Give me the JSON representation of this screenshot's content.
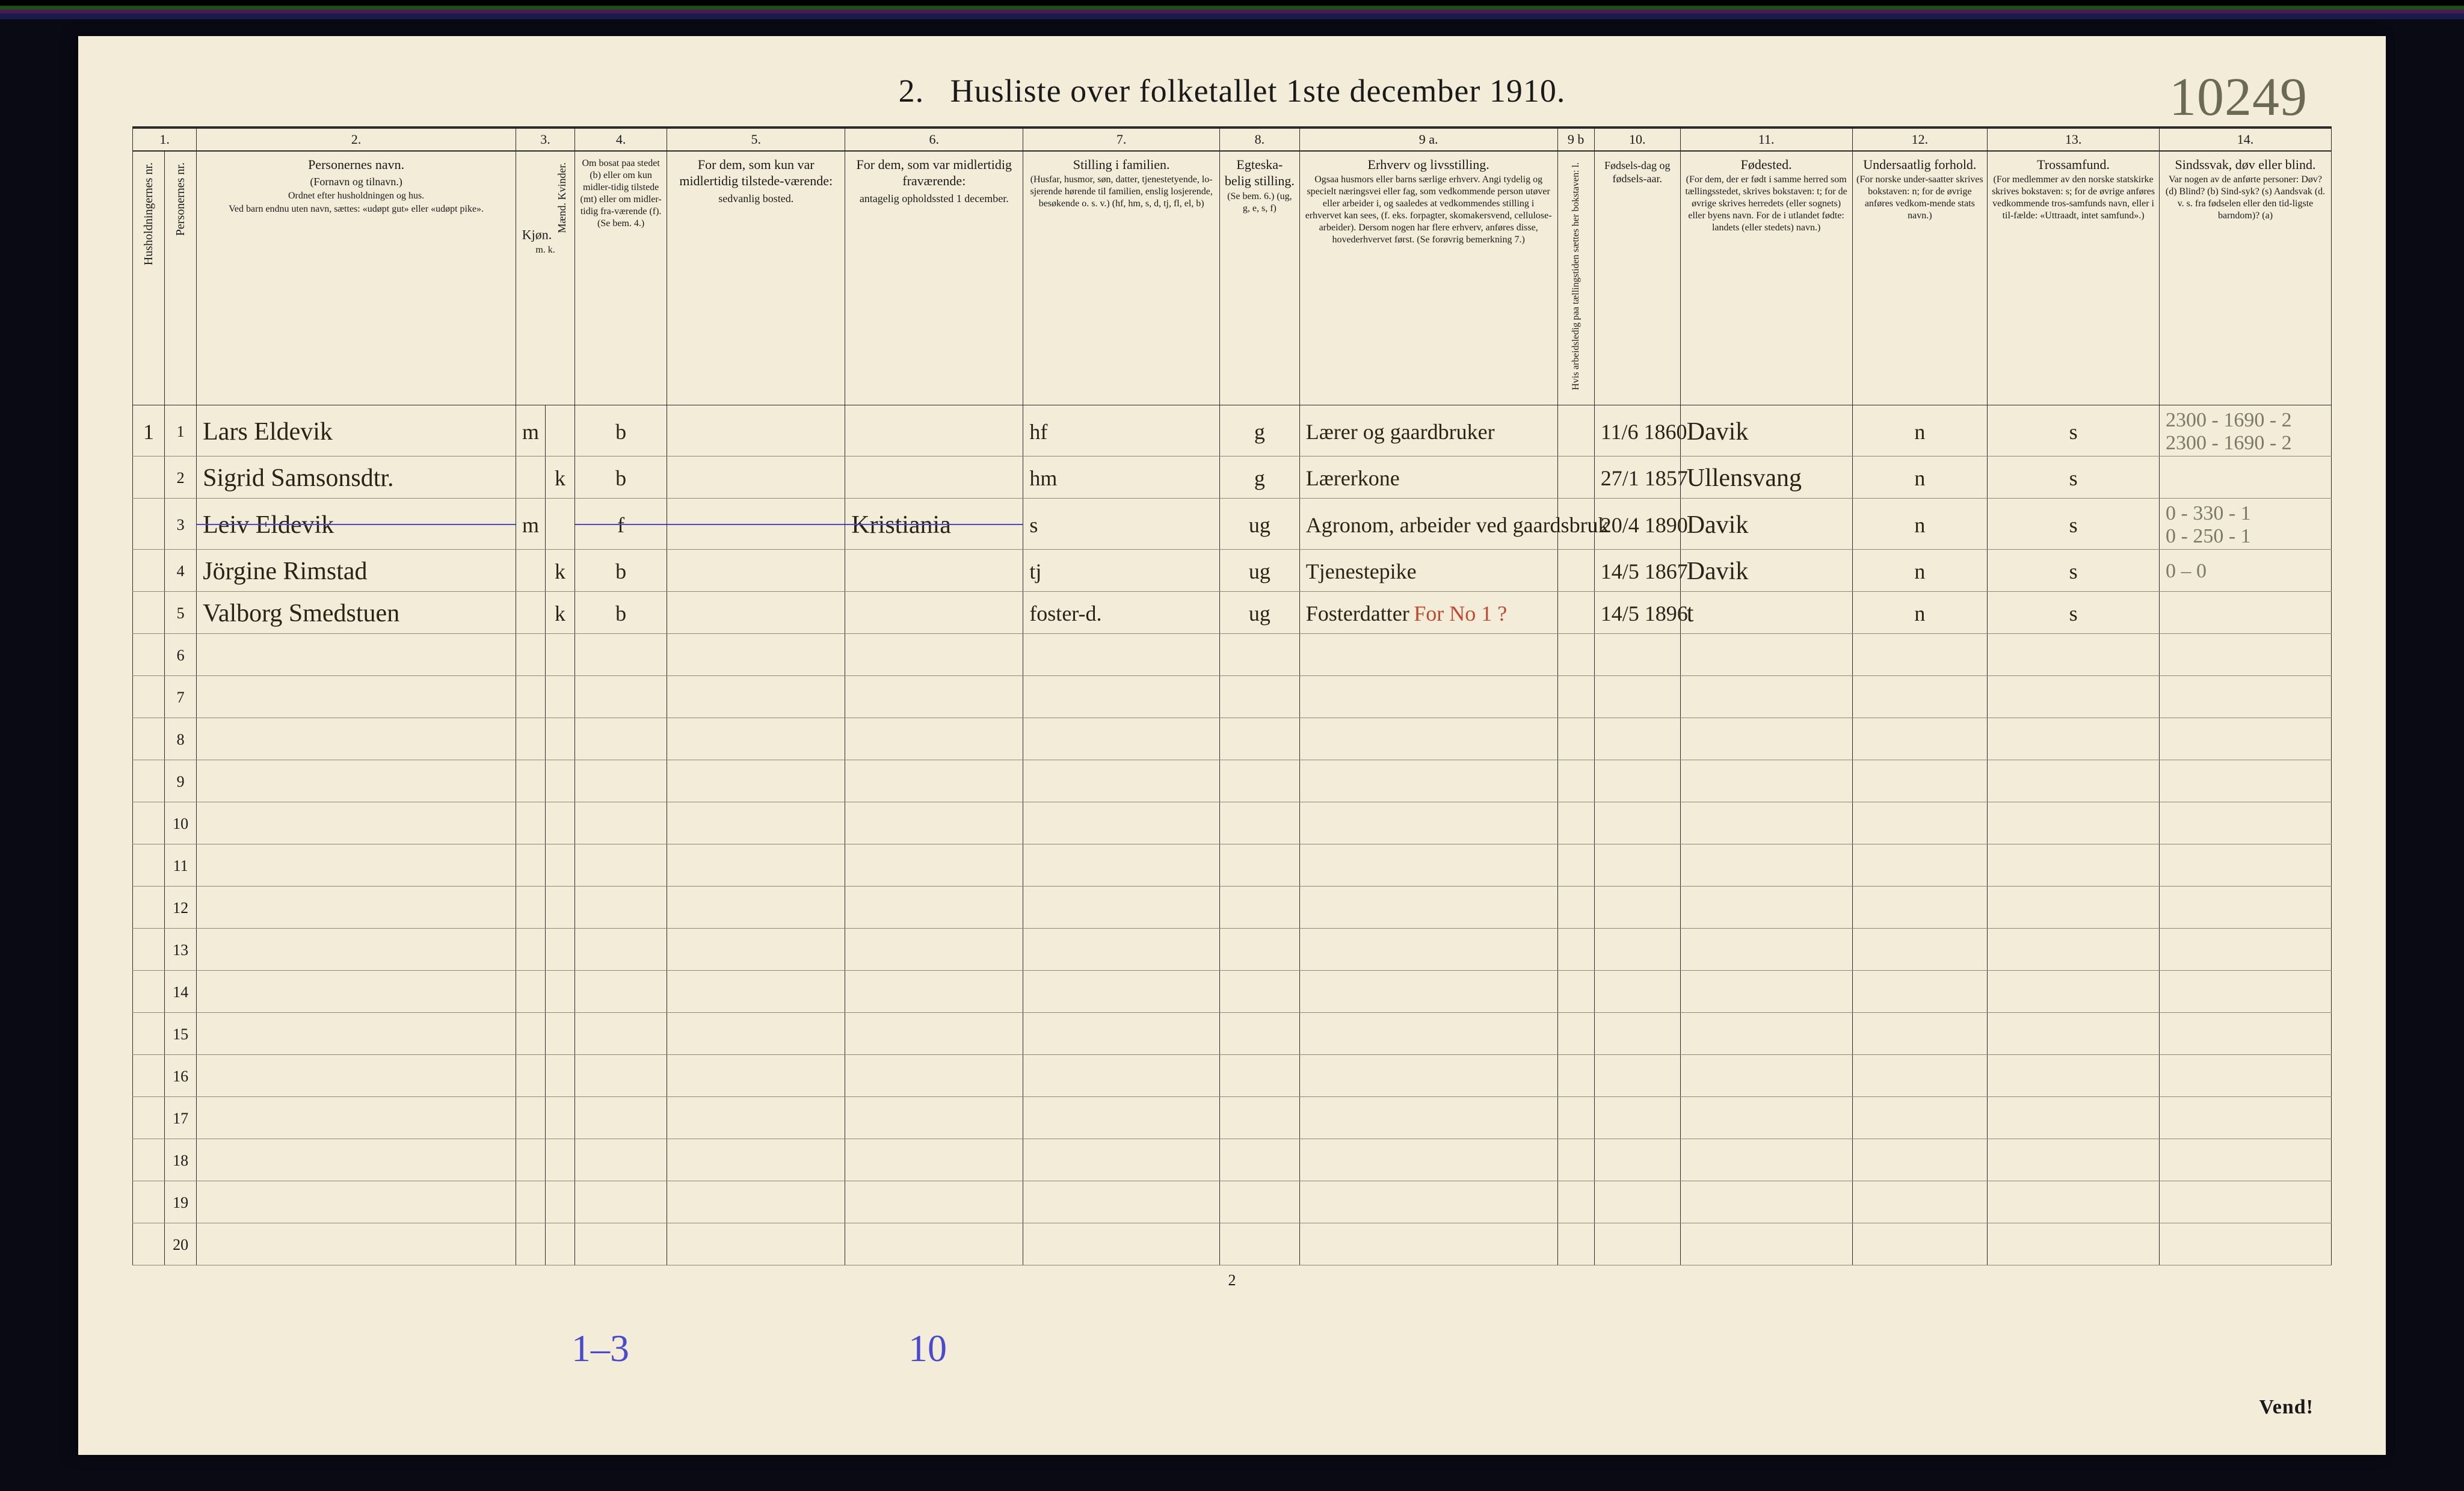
{
  "page": {
    "title_prefix": "2.",
    "title": "Husliste over folketallet 1ste december 1910.",
    "handwritten_ref": "10249",
    "footer_page": "2",
    "vend": "Vend!",
    "below_left": "1–3",
    "below_right": "10"
  },
  "colors": {
    "paper": "#f2ecd9",
    "ink": "#1a1a1a",
    "rule": "#2a2a2a",
    "faint_rule": "#8a8878",
    "hand_ink": "#2a2418",
    "hand_blue": "#4a4ad0",
    "hand_red": "#c04a30",
    "pencil": "#7a7a66"
  },
  "columns": {
    "nums": [
      "1.",
      "2.",
      "3.",
      "4.",
      "5.",
      "6.",
      "7.",
      "8.",
      "9 a.",
      "9 b",
      "10.",
      "11.",
      "12.",
      "13.",
      "14."
    ],
    "h1_vert": "Husholdningernes nr.",
    "h1b_vert": "Personernes nr.",
    "h2": "Personernes navn.",
    "h2_sub1": "(Fornavn og tilnavn.)",
    "h2_sub2": "Ordnet efter husholdningen og hus.",
    "h2_sub3": "Ved barn endnu uten navn, sættes: «udøpt gut» eller «udøpt pike».",
    "h3": "Kjøn.",
    "h3_sub": "Mænd.  Kvinder.",
    "h3_mk": "m.   k.",
    "h4": "Om bosat paa stedet (b) eller om kun midler-tidig tilstede (mt) eller om midler-tidig fra-værende (f). (Se bem. 4.)",
    "h5": "For dem, som kun var midlertidig tilstede-værende:",
    "h5_sub": "sedvanlig bosted.",
    "h6": "For dem, som var midlertidig fraværende:",
    "h6_sub": "antagelig opholdssted 1 december.",
    "h7": "Stilling i familien.",
    "h7_sub": "(Husfar, husmor, søn, datter, tjenestetyende, lo-sjerende hørende til familien, enslig losjerende, besøkende o. s. v.) (hf, hm, s, d, tj, fl, el, b)",
    "h8": "Egteska-belig stilling.",
    "h8_sub": "(Se bem. 6.) (ug, g, e, s, f)",
    "h9a": "Erhverv og livsstilling.",
    "h9a_sub": "Ogsaa husmors eller barns særlige erhverv. Angi tydelig og specielt næringsvei eller fag, som vedkommende person utøver eller arbeider i, og saaledes at vedkommendes stilling i erhvervet kan sees, (f. eks. forpagter, skomakersvend, cellulose-arbeider). Dersom nogen har flere erhverv, anføres disse, hovederhvervet først. (Se forøvrig bemerkning 7.)",
    "h9b_vert": "Hvis arbeidsledig paa tællingstiden sættes her bokstaven: l.",
    "h10": "Fødsels-dag og fødsels-aar.",
    "h11": "Fødested.",
    "h11_sub": "(For dem, der er født i samme herred som tællingsstedet, skrives bokstaven: t; for de øvrige skrives herredets (eller sognets) eller byens navn. For de i utlandet fødte: landets (eller stedets) navn.)",
    "h12": "Undersaatlig forhold.",
    "h12_sub": "(For norske under-saatter skrives bokstaven: n; for de øvrige anføres vedkom-mende stats navn.)",
    "h13": "Trossamfund.",
    "h13_sub": "(For medlemmer av den norske statskirke skrives bokstaven: s; for de øvrige anføres vedkommende tros-samfunds navn, eller i til-fælde: «Uttraadt, intet samfund».)",
    "h14": "Sindssvak, døv eller blind.",
    "h14_sub": "Var nogen av de anførte personer: Døv? (d) Blind? (b) Sind-syk? (s) Aandsvak (d. v. s. fra fødselen eller den tid-ligste barndom)? (a)"
  },
  "rows": [
    {
      "hnr": "1",
      "pnr": "1",
      "name": "Lars Eldevik",
      "sex_m": "m",
      "sex_k": "",
      "bosat": "b",
      "c5": "",
      "c6": "",
      "stilling": "hf",
      "egt": "g",
      "erhverv": "Lærer og gaardbruker",
      "fdato": "11/6 1860",
      "fsted": "Davik",
      "und": "n",
      "tros": "s",
      "margin": "2300 - 1690 - 2\n2300 - 1690 - 2",
      "struck": false
    },
    {
      "hnr": "",
      "pnr": "2",
      "name": "Sigrid Samsonsdtr.",
      "sex_m": "",
      "sex_k": "k",
      "bosat": "b",
      "c5": "",
      "c6": "",
      "stilling": "hm",
      "egt": "g",
      "erhverv": "Lærerkone",
      "fdato": "27/1 1857",
      "fsted": "Ullensvang",
      "und": "n",
      "tros": "s",
      "margin": "",
      "struck": false
    },
    {
      "hnr": "",
      "pnr": "3",
      "name": "Leiv Eldevik",
      "sex_m": "m",
      "sex_k": "",
      "bosat": "f",
      "c5": "",
      "c6": "Kristiania",
      "stilling": "s",
      "egt": "ug",
      "erhverv": "Agronom, arbeider ved gaardsbruk",
      "fdato": "20/4 1890",
      "fsted": "Davik",
      "und": "n",
      "tros": "s",
      "margin": "0 - 330 - 1\n0 - 250 - 1",
      "struck": true
    },
    {
      "hnr": "",
      "pnr": "4",
      "name": "Jörgine Rimstad",
      "sex_m": "",
      "sex_k": "k",
      "bosat": "b",
      "c5": "",
      "c6": "",
      "stilling": "tj",
      "egt": "ug",
      "erhverv": "Tjenestepike",
      "fdato": "14/5 1867",
      "fsted": "Davik",
      "und": "n",
      "tros": "s",
      "margin": "0 – 0",
      "struck": false
    },
    {
      "hnr": "",
      "pnr": "5",
      "name": "Valborg Smedstuen",
      "sex_m": "",
      "sex_k": "k",
      "bosat": "b",
      "c5": "",
      "c6": "",
      "stilling": "foster-d.",
      "egt": "ug",
      "erhverv": "Fosterdatter",
      "erhverv_red": "For No 1 ?",
      "fdato": "14/5 1896",
      "fsted": "t",
      "und": "n",
      "tros": "s",
      "margin": "",
      "struck": false
    }
  ],
  "empty_rows": [
    "6",
    "7",
    "8",
    "9",
    "10",
    "11",
    "12",
    "13",
    "14",
    "15",
    "16",
    "17",
    "18",
    "19",
    "20"
  ]
}
